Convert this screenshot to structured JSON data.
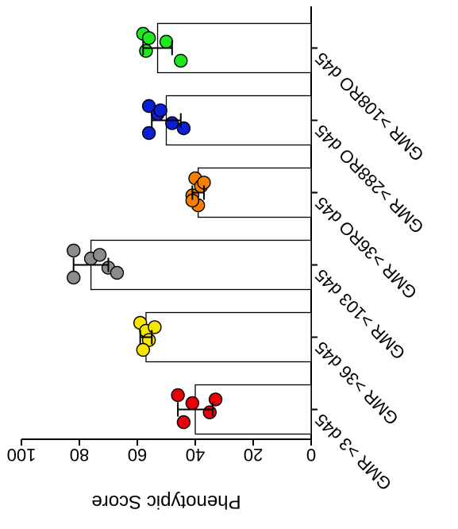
{
  "chart_data": {
    "type": "bar",
    "orientation": "rotated-180-vertical-axis-left-to-right",
    "ylabel": "Phenotypic Score",
    "ylim": [
      0,
      100
    ],
    "yticks": [
      0,
      20,
      40,
      60,
      80,
      100
    ],
    "categories": [
      "GMR >3 d45",
      "GMR >36 d45",
      "GMR >103 d45",
      "GMR >36RO d45",
      "GMR >288RO d45",
      "GMR >108RO d45"
    ],
    "bar_colors": [
      "#e8000b",
      "#f5e600",
      "#8c8c8c",
      "#f77f00",
      "#0a1fd6",
      "#1ee81e"
    ],
    "values": [
      40,
      57,
      76,
      39,
      50,
      53
    ],
    "sd": [
      6,
      2,
      6,
      2,
      5,
      5
    ],
    "points": [
      [
        46,
        41,
        35,
        44,
        33
      ],
      [
        59,
        57,
        56,
        58,
        54
      ],
      [
        82,
        76,
        70,
        82,
        73,
        67
      ],
      [
        40,
        38,
        41,
        39,
        37,
        41
      ],
      [
        56,
        53,
        48,
        56,
        52,
        44
      ],
      [
        58,
        50,
        57,
        45,
        56
      ]
    ],
    "grid": false,
    "legend": "none"
  }
}
